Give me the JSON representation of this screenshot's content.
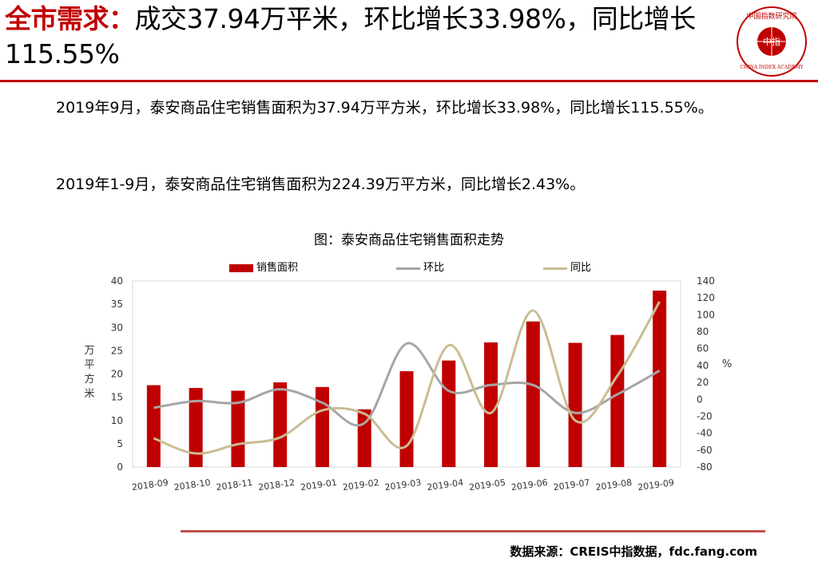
{
  "headline": {
    "key": "全市需求：",
    "rest": "成交37.94万平米，环比增长33.98%，同比增长115.55%"
  },
  "logo": {
    "arc_text": "中国指数研究院",
    "center_text": "中指",
    "bottom_text": "CHINA INDEX ACADEMY",
    "color": "#c00000"
  },
  "paragraphs": [
    "2019年9月，泰安商品住宅销售面积为37.94万平方米，环比增长33.98%，同比增长115.55%。",
    "2019年1-9月，泰安商品住宅销售面积为224.39万平方米，同比增长2.43%。"
  ],
  "chart_data": {
    "type": "bar",
    "title": "图：泰安商品住宅销售面积走势",
    "categories": [
      "2018-09",
      "2018-10",
      "2018-11",
      "2018-12",
      "2019-01",
      "2019-02",
      "2019-03",
      "2019-04",
      "2019-05",
      "2019-06",
      "2019-07",
      "2019-08",
      "2019-09"
    ],
    "series": [
      {
        "name": "销售面积",
        "type": "bar",
        "axis": "left",
        "color": "#c00000",
        "values": [
          17.6,
          17.0,
          16.4,
          18.2,
          17.2,
          12.4,
          20.6,
          22.9,
          26.8,
          31.3,
          26.7,
          28.4,
          37.94
        ]
      },
      {
        "name": "环比",
        "type": "line",
        "axis": "right",
        "color": "#a6a6a6",
        "values": [
          -10,
          -2,
          -4,
          12,
          -4,
          -28,
          66,
          10,
          17,
          17,
          -16,
          6,
          33.98
        ]
      },
      {
        "name": "同比",
        "type": "line",
        "axis": "right",
        "color": "#c9bd93",
        "values": [
          -46,
          -64,
          -53,
          -45,
          -13,
          -17,
          -55,
          64,
          -16,
          105,
          -25,
          28,
          115.55
        ]
      }
    ],
    "ylabel": "万平方米",
    "ylabel_right": "%",
    "ylim": [
      0,
      40
    ],
    "yticks": [
      0,
      5,
      10,
      15,
      20,
      25,
      30,
      35,
      40
    ],
    "ylim_right": [
      -80,
      140
    ],
    "yticks_right": [
      -80,
      -60,
      -40,
      -20,
      0,
      20,
      40,
      60,
      80,
      100,
      120,
      140
    ],
    "legend_position": "top",
    "grid": false
  },
  "source": "数据来源：CREIS中指数据，fdc.fang.com"
}
